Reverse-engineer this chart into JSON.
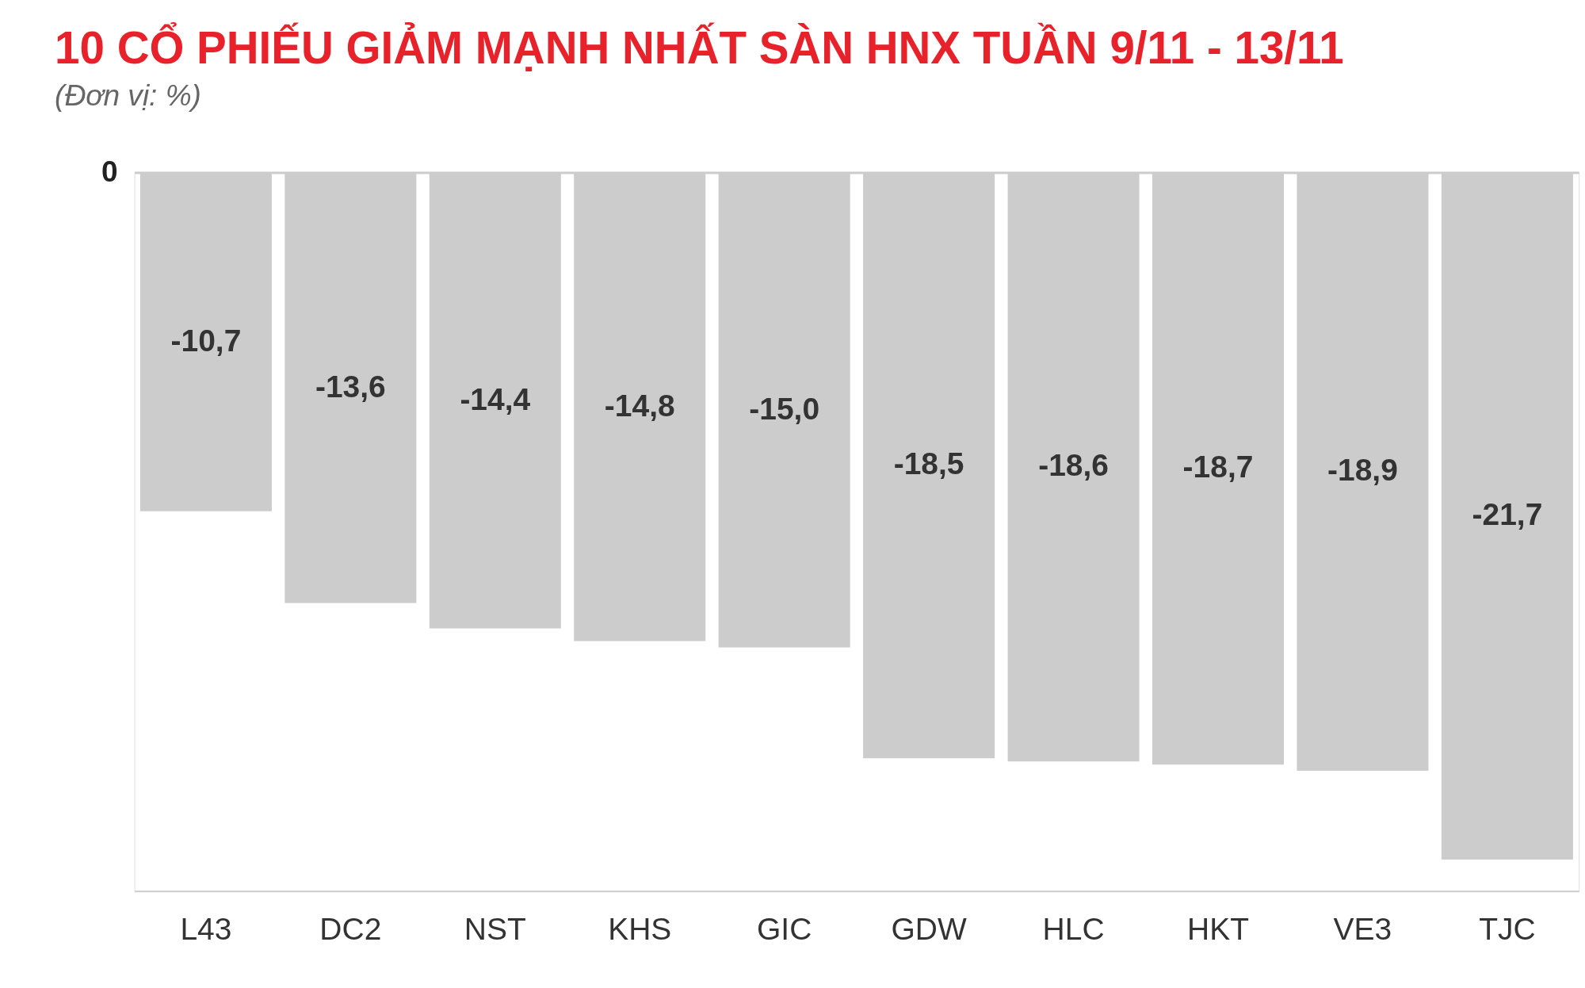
{
  "chart_data": {
    "type": "bar",
    "title": "10 CỔ PHIẾU GIẢM MẠNH NHẤT SÀN HNX TUẦN 9/11 - 13/11",
    "subtitle": "(Đơn vị: %)",
    "categories": [
      "L43",
      "DC2",
      "NST",
      "KHS",
      "GIC",
      "GDW",
      "HLC",
      "HKT",
      "VE3",
      "TJC"
    ],
    "values": [
      -10.7,
      -13.6,
      -14.4,
      -14.8,
      -15.0,
      -18.5,
      -18.6,
      -18.7,
      -18.9,
      -21.7
    ],
    "value_labels": [
      "-10,7",
      "-13,6",
      "-14,4",
      "-14,8",
      "-15,0",
      "-18,5",
      "-18,6",
      "-18,7",
      "-18,9",
      "-21,7"
    ],
    "color": "#cccccc",
    "ylim": [
      -22.7,
      0
    ],
    "ref_lines": [
      {
        "axis": "y",
        "value": 0,
        "label": "0",
        "color": "#cccccc"
      }
    ]
  }
}
